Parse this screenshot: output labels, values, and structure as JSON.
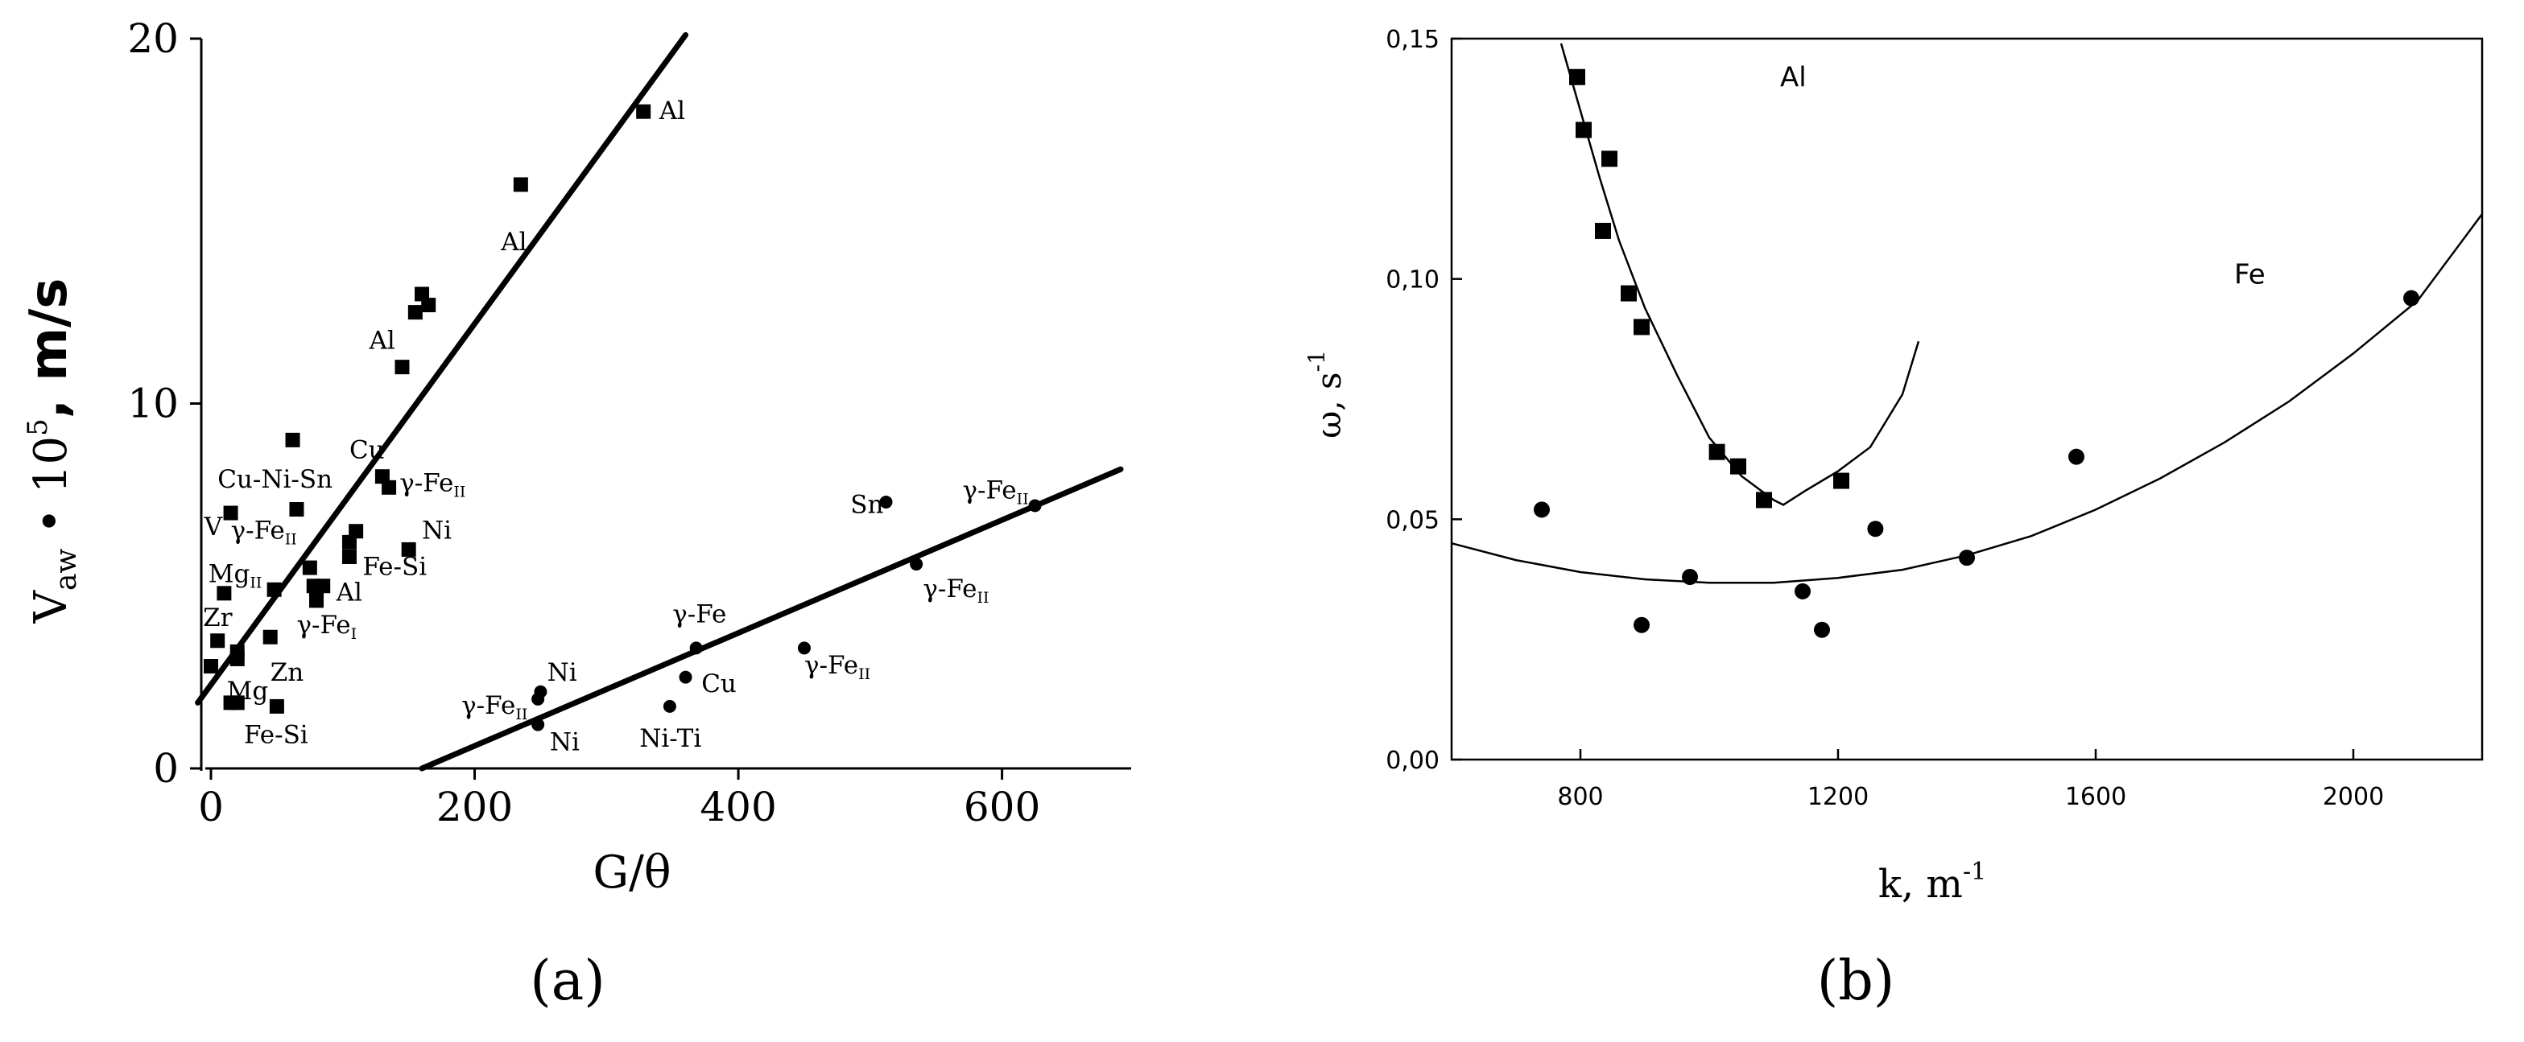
{
  "chart_data": [
    {
      "id": "a",
      "type": "scatter",
      "caption": "(a)",
      "xlabel": "G/θ",
      "ylabel_parts": {
        "main": "V",
        "sub": "aw",
        "mid": " • 10",
        "sup": "5",
        "end": ", m/s"
      },
      "xlim": [
        0,
        690
      ],
      "ylim": [
        0,
        20
      ],
      "x_ticks": [
        0,
        200,
        400,
        600
      ],
      "x_tick_labels": [
        "0",
        "200",
        "400",
        "600"
      ],
      "y_ticks": [
        0,
        10,
        20
      ],
      "y_tick_labels": [
        "0",
        "10",
        "20"
      ],
      "series": [
        {
          "marker": "square",
          "points": [
            [
              5,
              3.5
            ],
            [
              0,
              2.8
            ],
            [
              10,
              4.8
            ],
            [
              20,
              3.2
            ],
            [
              20,
              3.0
            ],
            [
              15,
              1.8
            ],
            [
              20,
              1.8
            ],
            [
              50,
              1.7
            ],
            [
              45,
              3.6
            ],
            [
              15,
              7.0
            ],
            [
              48,
              4.9
            ],
            [
              62,
              9.0
            ],
            [
              65,
              7.1
            ],
            [
              75,
              5.5
            ],
            [
              78,
              5.0
            ],
            [
              80,
              4.8
            ],
            [
              80,
              4.6
            ],
            [
              85,
              5.0
            ],
            [
              105,
              5.8
            ],
            [
              105,
              6.2
            ],
            [
              110,
              6.5
            ],
            [
              130,
              8.0
            ],
            [
              135,
              7.7
            ],
            [
              150,
              6.0
            ],
            [
              145,
              11.0
            ],
            [
              155,
              12.5
            ],
            [
              160,
              13.0
            ],
            [
              165,
              12.7
            ],
            [
              235,
              16.0
            ],
            [
              328,
              18.0
            ]
          ]
        },
        {
          "marker": "circle",
          "points": [
            [
              248,
              1.9
            ],
            [
              250,
              2.1
            ],
            [
              248,
              1.2
            ],
            [
              348,
              1.7
            ],
            [
              360,
              2.5
            ],
            [
              368,
              3.3
            ],
            [
              450,
              3.3
            ],
            [
              512,
              7.3
            ],
            [
              535,
              5.6
            ],
            [
              625,
              7.2
            ]
          ]
        }
      ],
      "lines": [
        {
          "x": [
            -10,
            360
          ],
          "y": [
            1.8,
            20.1
          ]
        },
        {
          "x": [
            160,
            690
          ],
          "y": [
            0,
            8.2
          ]
        }
      ],
      "annotations": [
        {
          "text": "Al",
          "x": 340,
          "y": 17.8
        },
        {
          "text": "Al",
          "x": 220,
          "y": 14.2
        },
        {
          "text": "Al",
          "x": 120,
          "y": 11.5
        },
        {
          "text": "Cu",
          "x": 105,
          "y": 8.5
        },
        {
          "text": "γ-Fe",
          "sub": "II",
          "x": 143,
          "y": 7.6
        },
        {
          "text": "Cu-Ni-Sn",
          "x": 5,
          "y": 7.7
        },
        {
          "text": "V",
          "x": -5,
          "y": 6.4
        },
        {
          "text": "γ-Fe",
          "sub": "II",
          "x": 15,
          "y": 6.3
        },
        {
          "text": "Mg",
          "sub": "II",
          "x": -2,
          "y": 5.1
        },
        {
          "text": "Zr",
          "x": -6,
          "y": 3.9
        },
        {
          "text": "Mg",
          "x": 12,
          "y": 1.9
        },
        {
          "text": "Zn",
          "x": 45,
          "y": 2.4
        },
        {
          "text": "Fe-Si",
          "x": 25,
          "y": 0.7
        },
        {
          "text": "γ-Fe",
          "sub": "I",
          "x": 65,
          "y": 3.7
        },
        {
          "text": "Al",
          "x": 95,
          "y": 4.6
        },
        {
          "text": "Fe-Si",
          "x": 115,
          "y": 5.3
        },
        {
          "text": "Ni",
          "x": 160,
          "y": 6.3
        },
        {
          "text": "Sn",
          "x": 485,
          "y": 7.0
        },
        {
          "text": "γ-Fe",
          "sub": "II",
          "x": 570,
          "y": 7.4
        },
        {
          "text": "γ-Fe",
          "sub": "II",
          "x": 540,
          "y": 4.7
        },
        {
          "text": "γ-Fe",
          "x": 350,
          "y": 4.0
        },
        {
          "text": "γ-Fe",
          "sub": "II",
          "x": 450,
          "y": 2.6
        },
        {
          "text": "Cu",
          "x": 372,
          "y": 2.1
        },
        {
          "text": "Ni",
          "x": 255,
          "y": 2.4
        },
        {
          "text": "γ-Fe",
          "sub": "II",
          "x": 190,
          "y": 1.5
        },
        {
          "text": "Ni",
          "x": 257,
          "y": 0.5
        },
        {
          "text": "Ni-Ti",
          "x": 325,
          "y": 0.6
        }
      ]
    },
    {
      "id": "b",
      "type": "scatter",
      "caption": "(b)",
      "xlabel_parts": {
        "main": "k, m",
        "sup": "-1"
      },
      "ylabel_parts": {
        "main": "ω, s",
        "sup": "-1"
      },
      "xlim": [
        600,
        2200
      ],
      "ylim": [
        0.0,
        0.15
      ],
      "x_ticks": [
        800,
        1200,
        1600,
        2000
      ],
      "x_tick_labels": [
        "800",
        "1200",
        "1600",
        "2000"
      ],
      "y_ticks": [
        0.0,
        0.05,
        0.1,
        0.15
      ],
      "y_tick_labels": [
        "0,00",
        "0,05",
        "0,10",
        "0,15"
      ],
      "series": [
        {
          "label": "Al",
          "marker": "square",
          "points": [
            [
              795,
              0.142
            ],
            [
              805,
              0.131
            ],
            [
              845,
              0.125
            ],
            [
              835,
              0.11
            ],
            [
              875,
              0.097
            ],
            [
              895,
              0.09
            ],
            [
              1012,
              0.064
            ],
            [
              1045,
              0.061
            ],
            [
              1085,
              0.054
            ],
            [
              1205,
              0.058
            ]
          ]
        },
        {
          "label": "Fe",
          "marker": "circle",
          "points": [
            [
              740,
              0.052
            ],
            [
              895,
              0.028
            ],
            [
              970,
              0.038
            ],
            [
              1145,
              0.035
            ],
            [
              1175,
              0.027
            ],
            [
              1258,
              0.048
            ],
            [
              1400,
              0.042
            ],
            [
              1570,
              0.063
            ],
            [
              2090,
              0.096
            ]
          ]
        }
      ],
      "curves": [
        {
          "x": [
            770,
            800,
            830,
            860,
            900,
            950,
            1000,
            1050,
            1100,
            1115,
            1150,
            1200,
            1250,
            1300,
            1325
          ],
          "y": [
            0.149,
            0.135,
            0.121,
            0.108,
            0.094,
            0.08,
            0.067,
            0.059,
            0.054,
            0.053,
            0.056,
            0.06,
            0.065,
            0.076,
            0.087
          ]
        },
        {
          "x": [
            600,
            700,
            800,
            900,
            1000,
            1100,
            1200,
            1300,
            1400,
            1500,
            1600,
            1700,
            1800,
            1900,
            2000,
            2100,
            2200
          ],
          "y": [
            0.045,
            0.0415,
            0.039,
            0.0375,
            0.0368,
            0.0368,
            0.0378,
            0.0395,
            0.0425,
            0.0465,
            0.052,
            0.0585,
            0.066,
            0.0745,
            0.0845,
            0.0955,
            0.1135
          ]
        }
      ],
      "annotations": [
        {
          "text": "Al",
          "x": 1110,
          "y": 0.14
        },
        {
          "text": "Fe",
          "x": 1815,
          "y": 0.099
        }
      ]
    }
  ]
}
